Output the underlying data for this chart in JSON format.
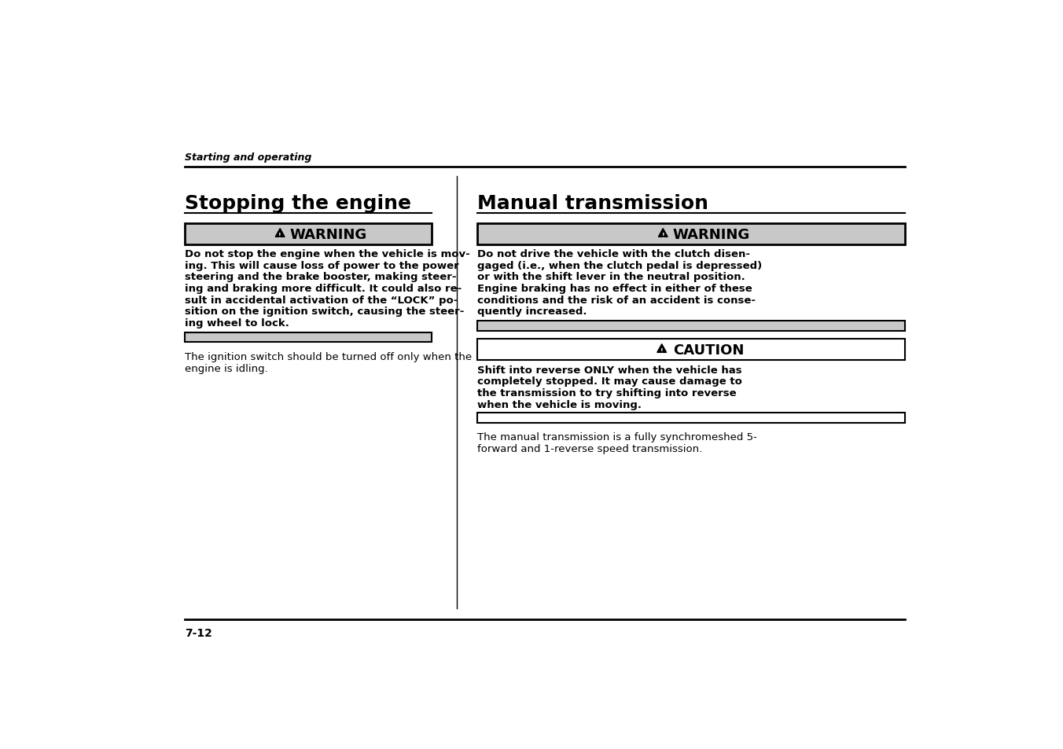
{
  "bg_color": "#ffffff",
  "header_italic": "Starting and operating",
  "page_number": "7-12",
  "left_title": "Stopping the engine",
  "right_title": "Manual transmission",
  "warning_bg": "#c8c8c8",
  "caution_bg": "#ffffff",
  "divider_color": "#000000",
  "text_color": "#000000",
  "left_warning_lines": [
    "Do not stop the engine when the vehicle is mov-",
    "ing. This will cause loss of power to the power",
    "steering and the brake booster, making steer-",
    "ing and braking more difficult. It could also re-",
    "sult in accidental activation of the “LOCK” po-",
    "sition on the ignition switch, causing the steer-",
    "ing wheel to lock."
  ],
  "left_body_lines": [
    "The ignition switch should be turned off only when the",
    "engine is idling."
  ],
  "right_warning_lines": [
    "Do not drive the vehicle with the clutch disen-",
    "gaged (i.e., when the clutch pedal is depressed)",
    "or with the shift lever in the neutral position.",
    "Engine braking has no effect in either of these",
    "conditions and the risk of an accident is conse-",
    "quently increased."
  ],
  "caution_lines": [
    "Shift into reverse ONLY when the vehicle has",
    "completely stopped. It may cause damage to",
    "the transmission to try shifting into reverse",
    "when the vehicle is moving."
  ],
  "right_body_lines": [
    "The manual transmission is a fully synchromeshed 5-",
    "forward and 1-reverse speed transmission."
  ]
}
